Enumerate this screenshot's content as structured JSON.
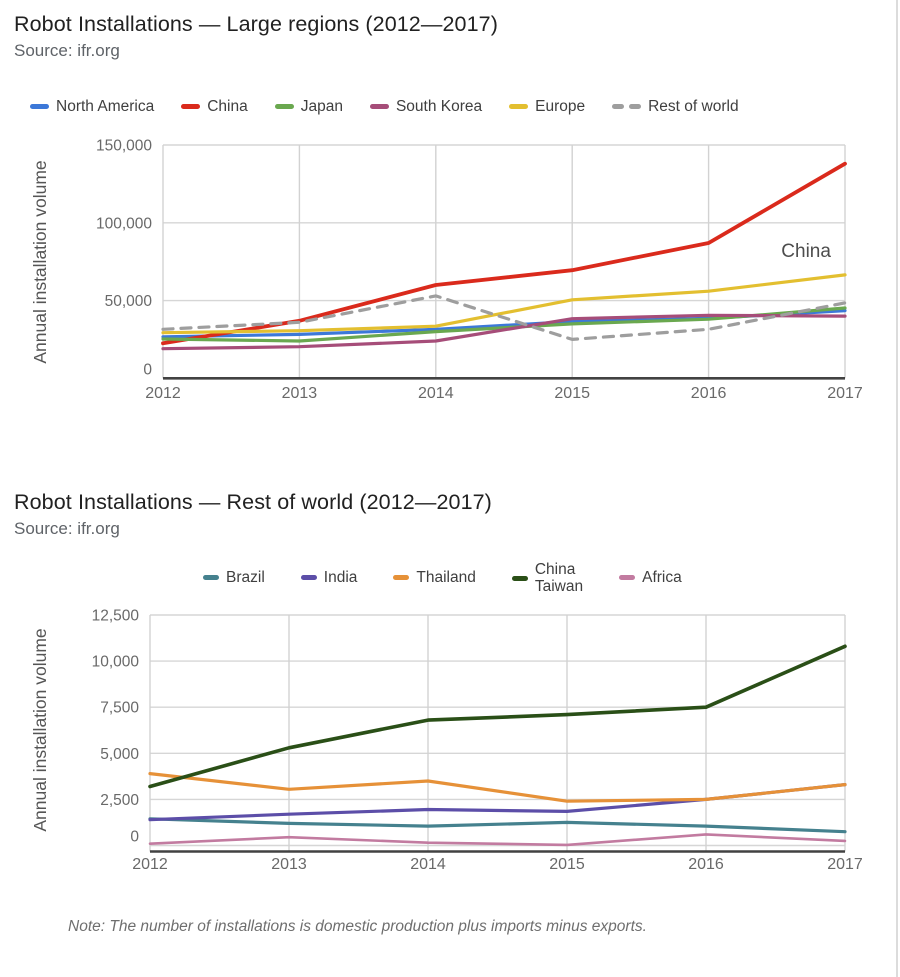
{
  "page": {
    "note": "Note: The number of installations is domestic production plus imports minus exports."
  },
  "chart_data": [
    {
      "type": "line",
      "title": "Robot Installations — Large regions (2012—2017)",
      "source": "Source: ifr.org",
      "ylabel": "Annual installation volume",
      "categories": [
        "2012",
        "2013",
        "2014",
        "2015",
        "2016",
        "2017"
      ],
      "ylim": [
        0,
        150000
      ],
      "yticks": [
        0,
        50000,
        100000,
        150000
      ],
      "ytick_labels": [
        "0",
        "50,000",
        "100,000",
        "150,000"
      ],
      "grid": true,
      "legend_position": "top",
      "annotation": {
        "text": "China",
        "x_frac": 0.943,
        "value": 78000
      },
      "series": [
        {
          "name": "North America",
          "color": "#3c78d8",
          "dash": null,
          "width": 3.2,
          "values": [
            26700,
            28200,
            31500,
            36500,
            38500,
            43500
          ]
        },
        {
          "name": "China",
          "color": "#da2a1c",
          "dash": null,
          "width": 3.8,
          "values": [
            22500,
            37000,
            60000,
            69500,
            87000,
            138000
          ]
        },
        {
          "name": "Japan",
          "color": "#6aa84f",
          "dash": null,
          "width": 3.2,
          "values": [
            25300,
            24000,
            30000,
            35000,
            38000,
            45200
          ]
        },
        {
          "name": "South Korea",
          "color": "#a64d79",
          "dash": null,
          "width": 3.2,
          "values": [
            19000,
            20300,
            24000,
            38300,
            40500,
            40000
          ]
        },
        {
          "name": "Europe",
          "color": "#e3bf30",
          "dash": null,
          "width": 3.2,
          "values": [
            29300,
            30600,
            33500,
            50500,
            56000,
            66500
          ]
        },
        {
          "name": "Rest of world",
          "color": "#9e9e9e",
          "dash": "10 8",
          "width": 3.2,
          "values": [
            31500,
            36000,
            53000,
            25000,
            31500,
            48500
          ]
        }
      ]
    },
    {
      "type": "line",
      "title": "Robot Installations — Rest of world (2012—2017)",
      "source": "Source: ifr.org",
      "ylabel": "Annual installation volume",
      "categories": [
        "2012",
        "2013",
        "2014",
        "2015",
        "2016",
        "2017"
      ],
      "ylim": [
        0,
        12500
      ],
      "yticks": [
        0,
        2500,
        5000,
        7500,
        10000,
        12500
      ],
      "ytick_labels": [
        "0",
        "2,500",
        "5,000",
        "7,500",
        "10,000",
        "12,500"
      ],
      "grid": true,
      "legend_position": "top",
      "annotation": null,
      "series": [
        {
          "name": "Brazil",
          "color": "#45818e",
          "dash": null,
          "width": 3.2,
          "values": [
            1450,
            1200,
            1050,
            1250,
            1050,
            750
          ]
        },
        {
          "name": "India",
          "color": "#5c4ea8",
          "dash": null,
          "width": 3.2,
          "values": [
            1400,
            1700,
            1950,
            1850,
            2500,
            3300
          ]
        },
        {
          "name": "Thailand",
          "color": "#e69138",
          "dash": null,
          "width": 3.2,
          "values": [
            3900,
            3050,
            3500,
            2400,
            2500,
            3300
          ]
        },
        {
          "name": "China Taiwan",
          "name_lines": [
            "China",
            "Taiwan"
          ],
          "color": "#2a4f17",
          "dash": null,
          "width": 3.6,
          "values": [
            3200,
            5300,
            6800,
            7100,
            7500,
            10800
          ]
        },
        {
          "name": "Africa",
          "color": "#c27ba0",
          "dash": null,
          "width": 2.6,
          "values": [
            100,
            450,
            150,
            30,
            600,
            250
          ]
        }
      ]
    }
  ]
}
